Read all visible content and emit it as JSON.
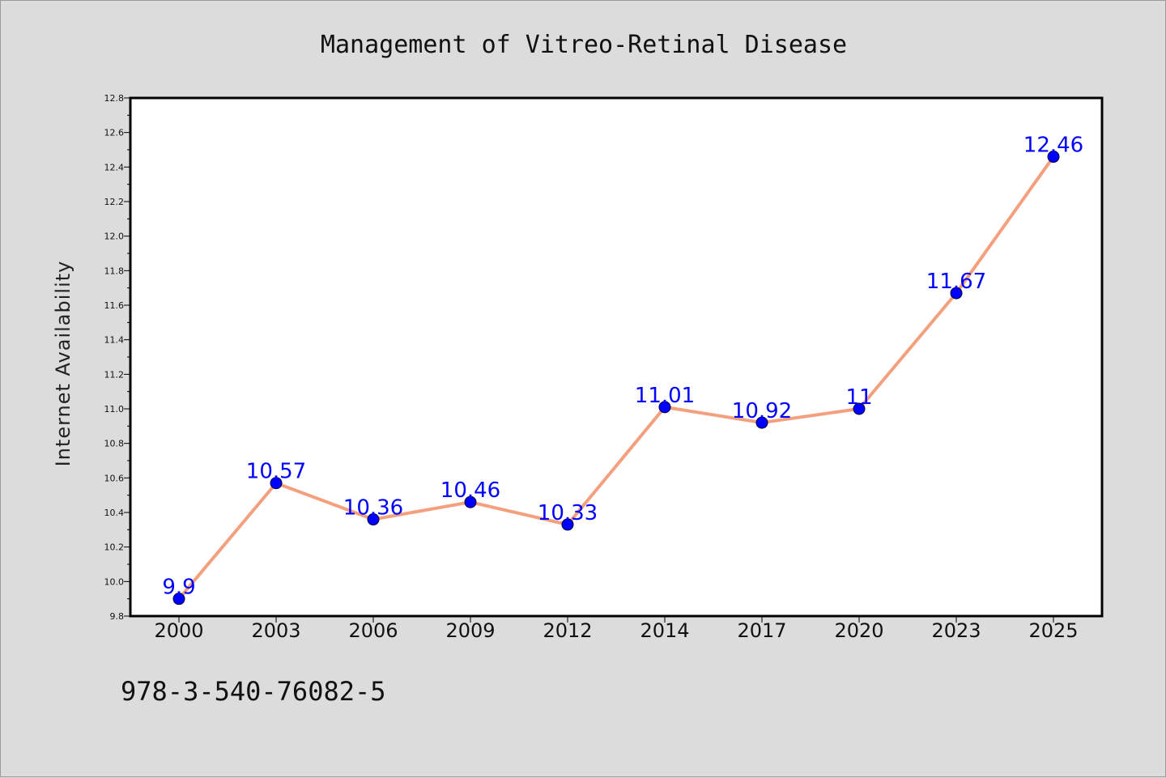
{
  "chart_data": {
    "type": "line",
    "title": "Management of Vitreo-Retinal Disease",
    "xlabel": "",
    "ylabel": "Internet Availability",
    "categories": [
      "2000",
      "2003",
      "2006",
      "2009",
      "2012",
      "2014",
      "2017",
      "2020",
      "2023",
      "2025"
    ],
    "values": [
      9.9,
      10.57,
      10.36,
      10.46,
      10.33,
      11.01,
      10.92,
      11,
      11.67,
      12.46
    ],
    "data_labels": [
      "9.9",
      "10.57",
      "10.36",
      "10.46",
      "10.33",
      "11.01",
      "10.92",
      "11",
      "11.67",
      "12.46"
    ],
    "ylim": [
      9.8,
      12.8
    ],
    "yticks": [
      "9.8",
      "10.0",
      "10.2",
      "10.4",
      "10.6",
      "10.8",
      "11.0",
      "11.2",
      "11.4",
      "11.6",
      "11.8",
      "12.0",
      "12.2",
      "12.4",
      "12.6",
      "12.8"
    ],
    "grid": false,
    "legend": "none",
    "line_color": "#f4a07e",
    "marker_color": "#0000ff",
    "label_color": "#0000ff",
    "background_color": "#dcdcdc",
    "plot_background_color": "#ffffff"
  },
  "footer_code": "978-3-540-76082-5"
}
